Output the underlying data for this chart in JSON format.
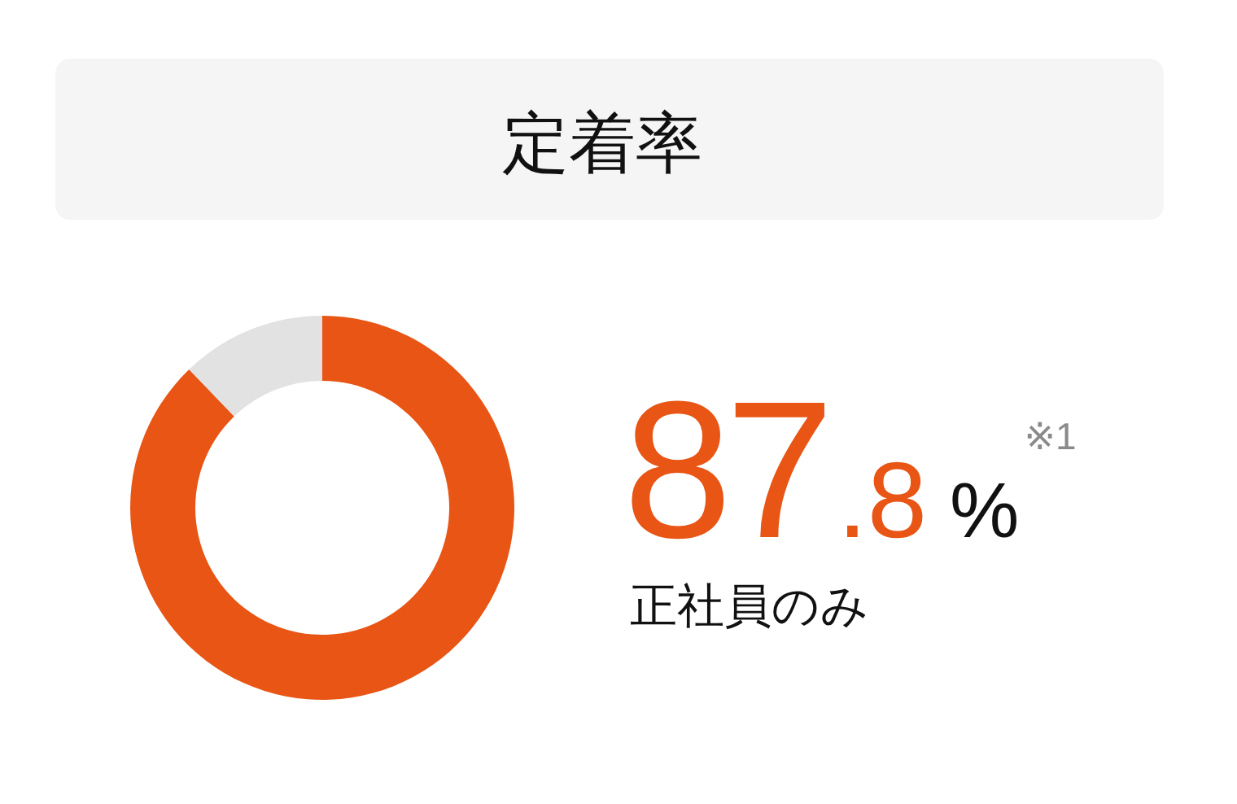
{
  "chart_data": {
    "type": "donut",
    "title": "定着率",
    "categories": [
      null,
      null
    ],
    "values": [
      87.8,
      12.2
    ],
    "colors": [
      "#e85514",
      "#e2e2e2"
    ],
    "value_labels": [
      "87.8%",
      null
    ],
    "annotations": [
      "※1",
      "正社員のみ"
    ]
  }
}
